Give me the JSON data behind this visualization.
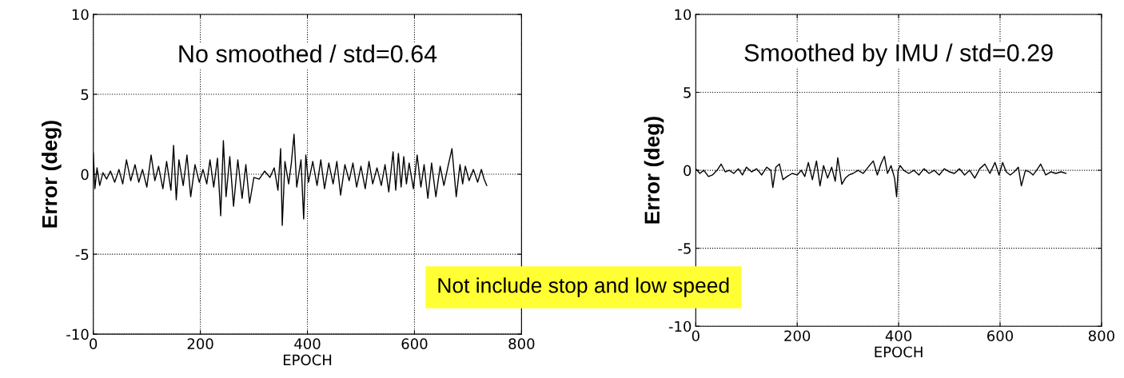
{
  "chart_data": [
    {
      "type": "line",
      "xlabel": "EPOCH",
      "ylabel": "Error (deg)",
      "xlim": [
        0,
        800
      ],
      "ylim": [
        -10,
        10
      ],
      "xticks": [
        0,
        200,
        400,
        600,
        800
      ],
      "yticks": [
        -10,
        -5,
        0,
        5,
        10
      ],
      "grid": true,
      "annotations": [
        "No smoothed / std=0.64",
        "Not include stop and low speed"
      ],
      "series": [
        {
          "color": "#000000",
          "x": [
            0,
            3,
            7,
            12,
            18,
            25,
            32,
            40,
            48,
            55,
            62,
            70,
            78,
            85,
            92,
            100,
            108,
            115,
            122,
            130,
            137,
            145,
            150,
            155,
            160,
            168,
            175,
            182,
            190,
            198,
            205,
            212,
            218,
            225,
            232,
            238,
            243,
            248,
            255,
            262,
            270,
            278,
            285,
            292,
            300,
            310,
            320,
            330,
            338,
            345,
            350,
            353,
            358,
            365,
            370,
            375,
            380,
            388,
            393,
            397,
            402,
            410,
            418,
            425,
            432,
            440,
            448,
            455,
            462,
            470,
            478,
            485,
            492,
            500,
            508,
            515,
            522,
            530,
            538,
            545,
            552,
            560,
            565,
            570,
            575,
            580,
            585,
            590,
            598,
            605,
            612,
            618,
            625,
            632,
            640,
            648,
            655,
            662,
            670,
            678,
            685,
            690,
            695,
            702,
            710,
            718,
            725,
            730,
            735
          ],
          "values": [
            1.3,
            -0.9,
            0.4,
            -0.7,
            0.1,
            -0.3,
            0.2,
            -0.5,
            0.3,
            -0.6,
            0.9,
            -0.4,
            0.6,
            -0.5,
            0.3,
            -0.8,
            1.2,
            -0.4,
            0.5,
            -0.9,
            0.8,
            -1.0,
            1.8,
            -1.6,
            0.9,
            -0.7,
            1.2,
            -1.4,
            0.6,
            -0.5,
            0.3,
            -0.6,
            0.9,
            -0.8,
            1.0,
            -2.6,
            2.1,
            -1.4,
            1.1,
            -2.0,
            0.9,
            -1.5,
            0.6,
            -1.8,
            -0.2,
            -0.3,
            0.2,
            -0.2,
            0.4,
            -1.0,
            1.6,
            -3.2,
            0.8,
            -0.6,
            0.7,
            2.5,
            -0.8,
            0.9,
            -2.8,
            1.2,
            -0.5,
            0.8,
            -0.7,
            0.9,
            -0.9,
            0.7,
            -0.6,
            0.8,
            -1.3,
            0.6,
            -0.4,
            0.7,
            -0.8,
            0.5,
            -0.9,
            0.8,
            -0.6,
            0.4,
            -0.7,
            0.6,
            -1.1,
            1.4,
            -1.0,
            1.3,
            -0.8,
            1.1,
            -0.6,
            0.7,
            -0.9,
            1.2,
            -0.8,
            0.6,
            -1.5,
            0.7,
            -1.4,
            0.5,
            -0.7,
            0.4,
            1.6,
            -1.4,
            0.6,
            -0.6,
            0.5,
            -0.4,
            0.3,
            -0.5,
            0.3,
            -0.3,
            -0.7
          ]
        }
      ]
    },
    {
      "type": "line",
      "xlabel": "EPOCH",
      "ylabel": "Error (deg)",
      "xlim": [
        0,
        800
      ],
      "ylim": [
        -10,
        10
      ],
      "xticks": [
        0,
        200,
        400,
        600,
        800
      ],
      "yticks": [
        -10,
        -5,
        0,
        5,
        10
      ],
      "grid": true,
      "annotations": [
        "Smoothed by IMU / std=0.29"
      ],
      "series": [
        {
          "color": "#000000",
          "x": [
            0,
            8,
            16,
            25,
            33,
            42,
            50,
            58,
            66,
            75,
            84,
            92,
            100,
            110,
            120,
            130,
            140,
            148,
            152,
            158,
            165,
            172,
            180,
            190,
            200,
            208,
            215,
            222,
            230,
            238,
            245,
            252,
            260,
            268,
            275,
            280,
            288,
            295,
            302,
            310,
            320,
            330,
            340,
            350,
            358,
            365,
            372,
            378,
            385,
            392,
            396,
            399,
            403,
            410,
            420,
            430,
            440,
            450,
            460,
            470,
            480,
            490,
            500,
            510,
            520,
            530,
            540,
            550,
            560,
            570,
            580,
            590,
            598,
            605,
            612,
            620,
            628,
            636,
            642,
            650,
            658,
            665,
            672,
            680,
            690,
            700,
            710,
            720,
            730
          ],
          "values": [
            0.1,
            -0.2,
            0.0,
            -0.4,
            -0.3,
            0.0,
            0.4,
            -0.1,
            0.0,
            -0.2,
            0.1,
            -0.3,
            0.2,
            -0.1,
            0.1,
            -0.3,
            0.2,
            0.0,
            -1.1,
            0.2,
            0.4,
            -0.6,
            -0.4,
            -0.2,
            -0.3,
            0.0,
            -0.4,
            0.5,
            -0.6,
            0.6,
            -1.0,
            0.3,
            -0.5,
            0.2,
            -0.7,
            0.8,
            -0.9,
            -0.5,
            -0.3,
            -0.2,
            0.0,
            -0.2,
            0.2,
            0.6,
            -0.3,
            0.4,
            0.9,
            -0.2,
            0.3,
            -0.5,
            -1.7,
            0.0,
            0.3,
            0.0,
            -0.2,
            0.0,
            -0.3,
            0.1,
            -0.2,
            0.0,
            -0.3,
            0.1,
            -0.1,
            -0.2,
            0.1,
            -0.3,
            0.0,
            -0.5,
            0.1,
            0.4,
            -0.2,
            0.5,
            -0.3,
            0.5,
            -0.1,
            -0.3,
            -0.1,
            0.2,
            -1.0,
            0.0,
            -0.1,
            -0.3,
            0.0,
            0.4,
            -0.3,
            -0.1,
            -0.2,
            -0.1,
            -0.2
          ]
        }
      ]
    }
  ]
}
